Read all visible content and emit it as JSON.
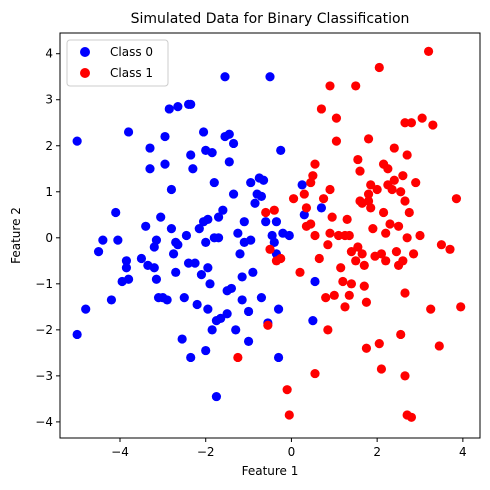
{
  "chart_data": {
    "type": "scatter",
    "title": "Simulated Data for Binary Classification",
    "xlabel": "Feature 1",
    "ylabel": "Feature 2",
    "xlim": [
      -5.4,
      4.4
    ],
    "ylim": [
      -4.35,
      4.45
    ],
    "xticks": [
      -4,
      -2,
      0,
      2,
      4
    ],
    "yticks": [
      -4,
      -3,
      -2,
      -1,
      0,
      1,
      2,
      3,
      4
    ],
    "xtick_labels": [
      "−4",
      "−2",
      "0",
      "2",
      "4"
    ],
    "ytick_labels": [
      "−4",
      "−3",
      "−2",
      "−1",
      "0",
      "1",
      "2",
      "3",
      "4"
    ],
    "grid": false,
    "legend": "top-left",
    "series": [
      {
        "name": "Class 0",
        "color": "#0000ff",
        "points": [
          [
            -5.0,
            2.1
          ],
          [
            -5.0,
            -2.1
          ],
          [
            -4.8,
            -1.55
          ],
          [
            -4.5,
            -0.3
          ],
          [
            -4.4,
            -0.05
          ],
          [
            -4.2,
            -1.35
          ],
          [
            -4.1,
            0.55
          ],
          [
            -4.05,
            -0.05
          ],
          [
            -3.95,
            -0.95
          ],
          [
            -3.85,
            -0.5
          ],
          [
            -3.85,
            -0.65
          ],
          [
            -3.8,
            2.3
          ],
          [
            -3.8,
            -0.9
          ],
          [
            -3.5,
            -0.45
          ],
          [
            -3.4,
            0.25
          ],
          [
            -3.35,
            -0.6
          ],
          [
            -3.3,
            1.95
          ],
          [
            -3.3,
            1.5
          ],
          [
            -3.2,
            -0.2
          ],
          [
            -3.2,
            -0.65
          ],
          [
            -3.15,
            -0.9
          ],
          [
            -3.15,
            -0.05
          ],
          [
            -3.1,
            -1.3
          ],
          [
            -3.05,
            0.45
          ],
          [
            -3.0,
            -1.3
          ],
          [
            -2.95,
            2.2
          ],
          [
            -2.95,
            1.6
          ],
          [
            -2.9,
            -1.35
          ],
          [
            -2.85,
            2.8
          ],
          [
            -2.8,
            1.05
          ],
          [
            -2.8,
            0.2
          ],
          [
            -2.75,
            -0.35
          ],
          [
            -2.7,
            -0.1
          ],
          [
            -2.7,
            -0.75
          ],
          [
            -2.65,
            2.85
          ],
          [
            -2.65,
            -0.15
          ],
          [
            -2.55,
            -2.2
          ],
          [
            -2.5,
            -1.3
          ],
          [
            -2.45,
            0.05
          ],
          [
            -2.4,
            2.9
          ],
          [
            -2.4,
            -0.55
          ],
          [
            -2.35,
            2.9
          ],
          [
            -2.35,
            1.8
          ],
          [
            -2.35,
            -2.6
          ],
          [
            -2.3,
            1.5
          ],
          [
            -2.25,
            -0.55
          ],
          [
            -2.2,
            -1.45
          ],
          [
            -2.15,
            0.2
          ],
          [
            -2.1,
            -0.8
          ],
          [
            -2.05,
            0.35
          ],
          [
            -2.05,
            2.3
          ],
          [
            -2.0,
            1.9
          ],
          [
            -2.0,
            -0.1
          ],
          [
            -2.0,
            -2.45
          ],
          [
            -1.95,
            0.4
          ],
          [
            -1.95,
            -0.65
          ],
          [
            -1.95,
            -1.55
          ],
          [
            -1.9,
            -1.0
          ],
          [
            -1.85,
            1.85
          ],
          [
            -1.85,
            -2.0
          ],
          [
            -1.8,
            1.2
          ],
          [
            -1.8,
            0.0
          ],
          [
            -1.75,
            -3.45
          ],
          [
            -1.75,
            -1.8
          ],
          [
            -1.7,
            0.45
          ],
          [
            -1.7,
            0.0
          ],
          [
            -1.65,
            -1.75
          ],
          [
            -1.6,
            0.6
          ],
          [
            -1.55,
            3.5
          ],
          [
            -1.55,
            2.2
          ],
          [
            -1.5,
            -1.15
          ],
          [
            -1.5,
            -1.65
          ],
          [
            -1.45,
            1.65
          ],
          [
            -1.45,
            2.25
          ],
          [
            -1.4,
            -1.1
          ],
          [
            -1.35,
            2.05
          ],
          [
            -1.35,
            0.95
          ],
          [
            -1.3,
            -2.0
          ],
          [
            -1.25,
            0.1
          ],
          [
            -1.2,
            -0.35
          ],
          [
            -1.15,
            -1.35
          ],
          [
            -1.15,
            -0.85
          ],
          [
            -1.1,
            -0.1
          ],
          [
            -1.1,
            0.35
          ],
          [
            -1.0,
            -1.6
          ],
          [
            -1.0,
            -2.25
          ],
          [
            -0.95,
            1.2
          ],
          [
            -0.95,
            -0.05
          ],
          [
            -0.9,
            -0.75
          ],
          [
            -0.85,
            0.75
          ],
          [
            -0.8,
            0.95
          ],
          [
            -0.75,
            1.3
          ],
          [
            -0.7,
            -1.3
          ],
          [
            -0.7,
            0.9
          ],
          [
            -0.65,
            1.25
          ],
          [
            -0.6,
            0.35
          ],
          [
            -0.55,
            -1.85
          ],
          [
            -0.5,
            3.5
          ],
          [
            -0.45,
            0.05
          ],
          [
            -0.4,
            -0.1
          ],
          [
            -0.35,
            0.35
          ],
          [
            -0.35,
            -0.35
          ],
          [
            -0.3,
            -1.55
          ],
          [
            -0.3,
            -2.6
          ],
          [
            -0.25,
            1.9
          ],
          [
            -0.2,
            0.1
          ],
          [
            -0.05,
            0.05
          ],
          [
            0.25,
            1.15
          ],
          [
            0.3,
            0.5
          ],
          [
            0.5,
            -1.8
          ],
          [
            0.55,
            -0.95
          ],
          [
            0.7,
            0.65
          ]
        ]
      },
      {
        "name": "Class 1",
        "color": "#ff0000",
        "points": [
          [
            -1.25,
            -2.6
          ],
          [
            -0.6,
            0.55
          ],
          [
            -0.55,
            -1.9
          ],
          [
            -0.5,
            -0.25
          ],
          [
            -0.4,
            0.6
          ],
          [
            -0.35,
            -0.5
          ],
          [
            -0.25,
            -0.45
          ],
          [
            -0.1,
            -3.3
          ],
          [
            -0.05,
            -3.85
          ],
          [
            0.05,
            0.85
          ],
          [
            0.2,
            -0.75
          ],
          [
            0.3,
            0.95
          ],
          [
            0.35,
            0.25
          ],
          [
            0.35,
            0.65
          ],
          [
            0.45,
            0.3
          ],
          [
            0.45,
            1.2
          ],
          [
            0.5,
            1.35
          ],
          [
            0.55,
            0.05
          ],
          [
            0.55,
            1.6
          ],
          [
            0.55,
            -2.95
          ],
          [
            0.65,
            -0.45
          ],
          [
            0.7,
            2.8
          ],
          [
            0.75,
            0.85
          ],
          [
            0.8,
            -1.3
          ],
          [
            0.85,
            -0.15
          ],
          [
            0.85,
            -2.0
          ],
          [
            0.9,
            0.1
          ],
          [
            0.9,
            1.05
          ],
          [
            0.9,
            3.3
          ],
          [
            0.95,
            0.45
          ],
          [
            1.0,
            -1.25
          ],
          [
            1.05,
            2.6
          ],
          [
            1.05,
            2.1
          ],
          [
            1.1,
            0.05
          ],
          [
            1.15,
            -0.65
          ],
          [
            1.2,
            -0.95
          ],
          [
            1.25,
            0.05
          ],
          [
            1.25,
            -1.5
          ],
          [
            1.3,
            0.4
          ],
          [
            1.35,
            -1.25
          ],
          [
            1.35,
            0.05
          ],
          [
            1.4,
            -0.3
          ],
          [
            1.4,
            -1.0
          ],
          [
            1.5,
            3.3
          ],
          [
            1.5,
            -0.5
          ],
          [
            1.55,
            -0.2
          ],
          [
            1.55,
            1.7
          ],
          [
            1.6,
            1.45
          ],
          [
            1.6,
            0.8
          ],
          [
            1.65,
            0.75
          ],
          [
            1.65,
            -0.35
          ],
          [
            1.7,
            -0.6
          ],
          [
            1.7,
            -1.05
          ],
          [
            1.75,
            -1.4
          ],
          [
            1.75,
            -2.4
          ],
          [
            1.8,
            2.15
          ],
          [
            1.8,
            0.95
          ],
          [
            1.8,
            0.8
          ],
          [
            1.85,
            0.65
          ],
          [
            1.85,
            1.15
          ],
          [
            1.9,
            0.2
          ],
          [
            1.95,
            -0.4
          ],
          [
            2.0,
            1.05
          ],
          [
            2.05,
            3.7
          ],
          [
            2.05,
            -2.3
          ],
          [
            2.1,
            -0.35
          ],
          [
            2.1,
            -2.85
          ],
          [
            2.15,
            0.55
          ],
          [
            2.15,
            1.6
          ],
          [
            2.2,
            0.1
          ],
          [
            2.2,
            -0.5
          ],
          [
            2.25,
            1.15
          ],
          [
            2.25,
            1.5
          ],
          [
            2.3,
            0.3
          ],
          [
            2.35,
            1.05
          ],
          [
            2.4,
            1.95
          ],
          [
            2.4,
            1.25
          ],
          [
            2.45,
            -0.3
          ],
          [
            2.5,
            0.25
          ],
          [
            2.5,
            -0.6
          ],
          [
            2.55,
            -2.1
          ],
          [
            2.55,
            1.0
          ],
          [
            2.6,
            1.35
          ],
          [
            2.6,
            -0.5
          ],
          [
            2.65,
            2.5
          ],
          [
            2.65,
            0.8
          ],
          [
            2.65,
            -1.2
          ],
          [
            2.65,
            -3.0
          ],
          [
            2.7,
            1.8
          ],
          [
            2.7,
            0.0
          ],
          [
            2.7,
            -3.85
          ],
          [
            2.75,
            0.55
          ],
          [
            2.8,
            -3.9
          ],
          [
            2.8,
            2.5
          ],
          [
            2.85,
            -0.35
          ],
          [
            2.9,
            1.2
          ],
          [
            3.0,
            0.05
          ],
          [
            3.05,
            2.6
          ],
          [
            3.2,
            4.05
          ],
          [
            3.25,
            -1.55
          ],
          [
            3.3,
            2.45
          ],
          [
            3.45,
            -2.35
          ],
          [
            3.5,
            -0.15
          ],
          [
            3.7,
            -0.25
          ],
          [
            3.85,
            0.85
          ],
          [
            3.95,
            -1.5
          ]
        ]
      }
    ]
  }
}
